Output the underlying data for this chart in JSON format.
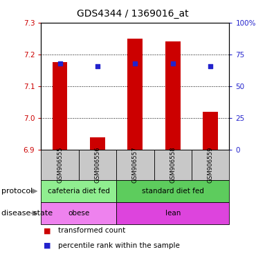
{
  "title": "GDS4344 / 1369016_at",
  "samples": [
    "GSM906555",
    "GSM906556",
    "GSM906557",
    "GSM906558",
    "GSM906559"
  ],
  "bar_values": [
    7.175,
    6.94,
    7.25,
    7.24,
    7.02
  ],
  "percentile_values": [
    7.172,
    7.162,
    7.172,
    7.172,
    7.162
  ],
  "ylim_left": [
    6.9,
    7.3
  ],
  "ylim_right": [
    0,
    100
  ],
  "yticks_left": [
    6.9,
    7.0,
    7.1,
    7.2,
    7.3
  ],
  "yticks_right": [
    0,
    25,
    50,
    75,
    100
  ],
  "protocol_groups": [
    {
      "label": "cafeteria diet fed",
      "cols": [
        0,
        1
      ],
      "color": "#90EE90"
    },
    {
      "label": "standard diet fed",
      "cols": [
        2,
        3,
        4
      ],
      "color": "#5DCC5D"
    }
  ],
  "disease_groups": [
    {
      "label": "obese",
      "cols": [
        0,
        1
      ],
      "color": "#EE82EE"
    },
    {
      "label": "lean",
      "cols": [
        2,
        3,
        4
      ],
      "color": "#DD44DD"
    }
  ],
  "bar_color": "#CC0000",
  "blue_marker_color": "#2222CC",
  "background_color": "#FFFFFF",
  "sample_box_color": "#C8C8C8",
  "left_tick_color": "#CC0000",
  "right_tick_color": "#2222CC"
}
